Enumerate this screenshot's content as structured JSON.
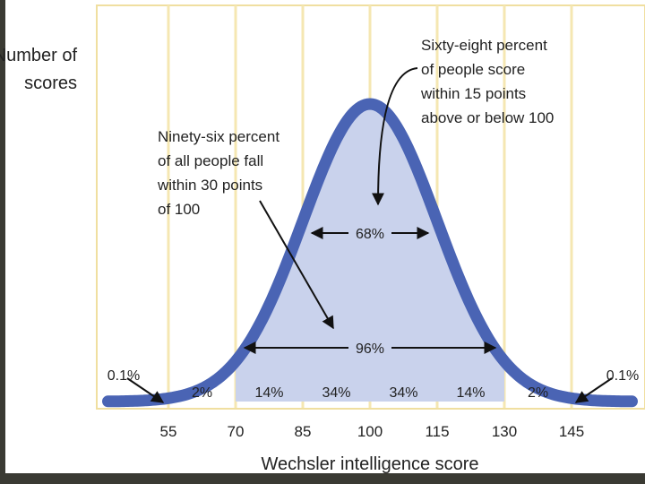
{
  "chart_data": {
    "type": "area",
    "title": "",
    "ylabel_lines": [
      "Number of",
      "scores"
    ],
    "xlabel": "Wechsler intelligence score",
    "xlim": [
      40,
      160
    ],
    "x_ticks": [
      "55",
      "70",
      "85",
      "100",
      "115",
      "130",
      "145"
    ],
    "x_tick_values": [
      55,
      70,
      85,
      100,
      115,
      130,
      145
    ],
    "distribution": {
      "kind": "normal",
      "mean": 100,
      "sd": 15
    },
    "band_percentages": [
      {
        "label": "0.1%",
        "from": 40,
        "to": 55
      },
      {
        "label": "2%",
        "from": 55,
        "to": 70
      },
      {
        "label": "14%",
        "from": 70,
        "to": 85
      },
      {
        "label": "34%",
        "from": 85,
        "to": 100
      },
      {
        "label": "34%",
        "from": 100,
        "to": 115
      },
      {
        "label": "14%",
        "from": 115,
        "to": 130
      },
      {
        "label": "2%",
        "from": 130,
        "to": 145
      },
      {
        "label": "0.1%",
        "from": 145,
        "to": 160
      }
    ],
    "shaded_range": [
      70,
      130
    ],
    "range_markers": [
      {
        "label": "68%",
        "from": 85,
        "to": 115
      },
      {
        "label": "96%",
        "from": 70,
        "to": 130
      }
    ],
    "annotations": [
      {
        "name": "sixty-eight",
        "lines": [
          "Sixty-eight percent",
          "of people score",
          "within 15 points",
          "above or below 100"
        ]
      },
      {
        "name": "ninety-six",
        "lines": [
          "Ninety-six percent",
          "of all people fall",
          "within 30 points",
          "of 100"
        ]
      }
    ],
    "colors": {
      "curve": "#4a64b4",
      "fill": "#c9d2ec",
      "gridline": "#f5e7b2",
      "text": "#222222"
    }
  }
}
